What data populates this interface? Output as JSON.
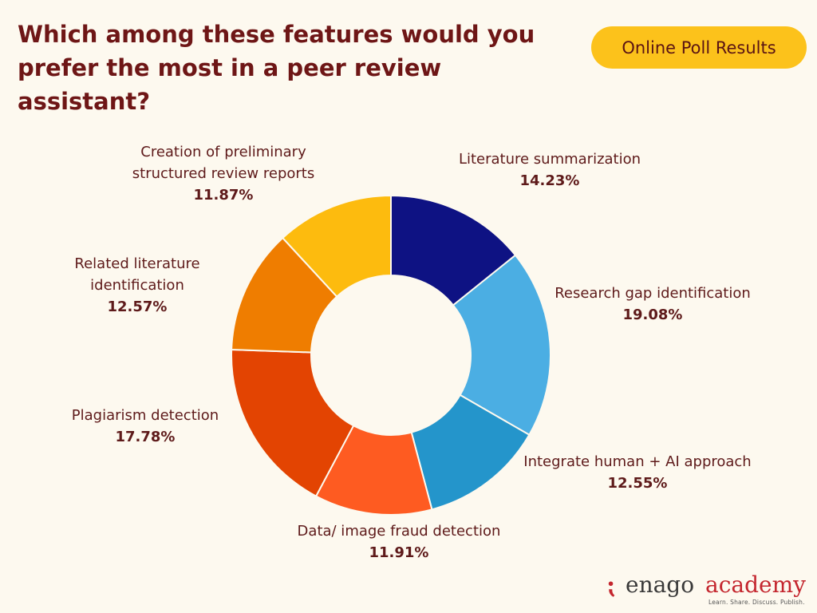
{
  "title": "Which among these features would you prefer the most in a peer review assistant?",
  "badge": "Online Poll Results",
  "colors": {
    "background": "#fdf9ef",
    "title": "#6e1616",
    "badge": "#fcc21b"
  },
  "chart_data": {
    "type": "pie",
    "donut": true,
    "title": "Which among these features would you prefer the most in a peer review assistant?",
    "slices": [
      {
        "label": "Literature summarization",
        "value": 14.23,
        "display": "14.23%",
        "color": "#0e1283"
      },
      {
        "label": "Research gap identification",
        "value": 19.08,
        "display": "19.08%",
        "color": "#4baee3"
      },
      {
        "label": "Integrate human + AI approach",
        "value": 12.55,
        "display": "12.55%",
        "color": "#2495cb"
      },
      {
        "label": "Data/ image fraud detection",
        "value": 11.91,
        "display": "11.91%",
        "color": "#fe5b21"
      },
      {
        "label": "Plagiarism detection",
        "value": 17.78,
        "display": "17.78%",
        "color": "#e34402"
      },
      {
        "label": "Related literature identification",
        "value": 12.57,
        "display": "12.57%",
        "color": "#ef7d00"
      },
      {
        "label": "Creation of preliminary structured review reports",
        "value": 11.87,
        "display": "11.87%",
        "color": "#fdbb0e"
      }
    ]
  },
  "labels": {
    "lit_sum": {
      "name": "Literature summarization",
      "pct": "14.23%"
    },
    "gap": {
      "name": "Research gap identification",
      "pct": "19.08%"
    },
    "human_ai": {
      "name": "Integrate human + AI approach",
      "pct": "12.55%"
    },
    "fraud": {
      "name": "Data/ image fraud detection",
      "pct": "11.91%"
    },
    "plag": {
      "name": "Plagiarism detection",
      "pct": "17.78%"
    },
    "related_1": "Related literature",
    "related_2": "identification",
    "related_pct": "12.57%",
    "creation_1": "Creation of preliminary",
    "creation_2": "structured review reports",
    "creation_pct": "11.87%"
  },
  "logo": {
    "mark": "⁏",
    "enago": "enago",
    "academy": "academy",
    "tagline": "Learn. Share. Discuss. Publish."
  }
}
